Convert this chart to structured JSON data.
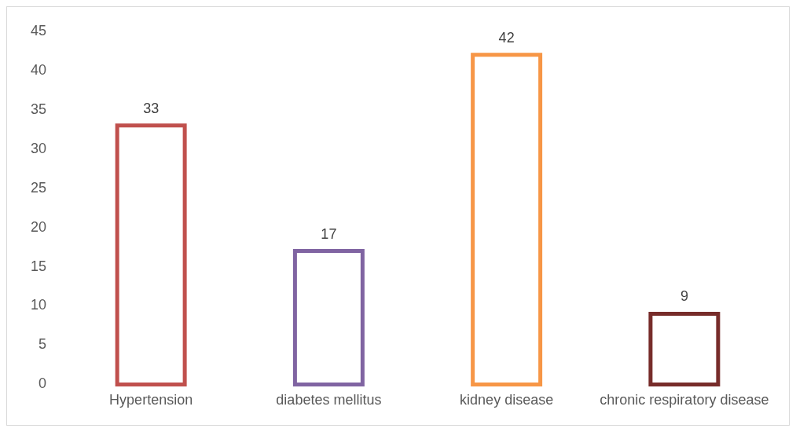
{
  "chart_data": {
    "type": "bar",
    "categories": [
      "Hypertension",
      "diabetes mellitus",
      "kidney disease",
      "chronic respiratory disease"
    ],
    "values": [
      33,
      17,
      42,
      9
    ],
    "colors": [
      "#c0504d",
      "#8064a2",
      "#f79646",
      "#772c2a"
    ],
    "ylim": [
      0,
      45
    ],
    "yticks": [
      0,
      5,
      10,
      15,
      20,
      25,
      30,
      35,
      40,
      45
    ],
    "grid": false,
    "legend": false,
    "data_labels": true
  }
}
